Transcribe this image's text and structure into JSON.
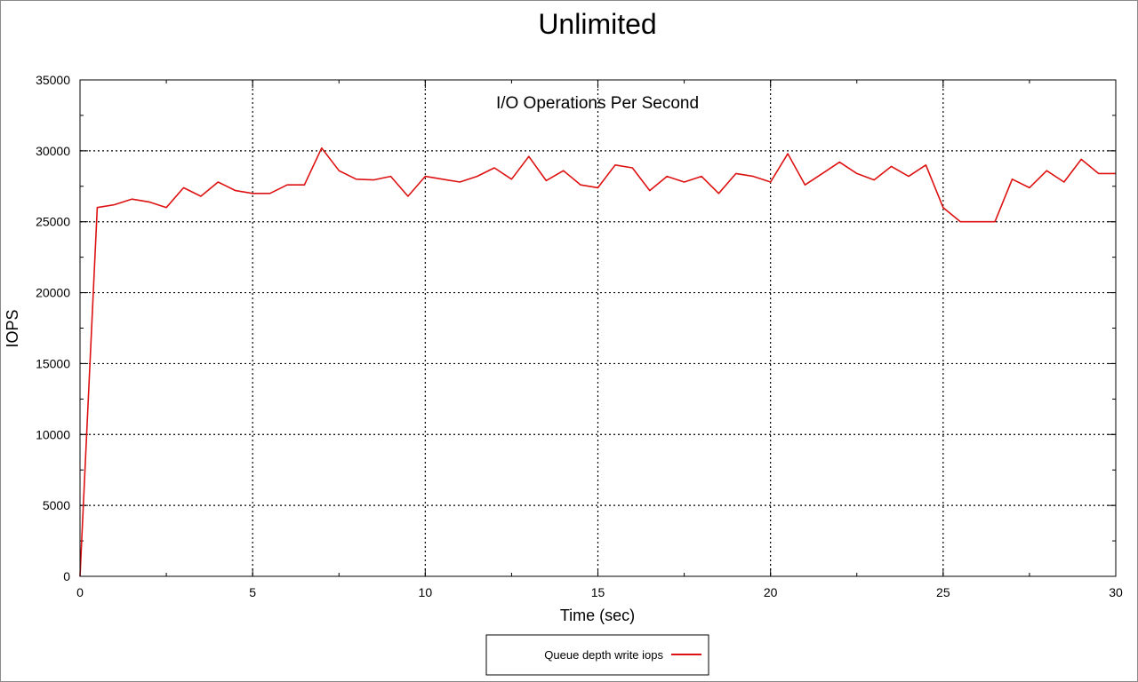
{
  "chart_data": {
    "type": "line",
    "title": "Unlimited",
    "subtitle": "I/O Operations Per Second",
    "xlabel": "Time (sec)",
    "ylabel": "IOPS",
    "xlim": [
      0,
      30
    ],
    "ylim": [
      0,
      35000
    ],
    "x_ticks": [
      0,
      5,
      10,
      15,
      20,
      25,
      30
    ],
    "y_ticks": [
      0,
      5000,
      10000,
      15000,
      20000,
      25000,
      30000,
      35000
    ],
    "grid": true,
    "legend_position": "bottom-center",
    "series": [
      {
        "name": "Queue depth write iops",
        "color": "#dd1111",
        "x": [
          0,
          0.5,
          1.0,
          1.5,
          2.0,
          2.5,
          3.0,
          3.5,
          4.0,
          4.5,
          5.0,
          5.5,
          6.0,
          6.5,
          7.0,
          7.5,
          8.0,
          8.5,
          9.0,
          9.5,
          10.0,
          10.5,
          11.0,
          11.5,
          12.0,
          12.5,
          13.0,
          13.5,
          14.0,
          14.5,
          15.0,
          15.5,
          16.0,
          16.5,
          17.0,
          17.5,
          18.0,
          18.5,
          19.0,
          19.5,
          20.0,
          20.5,
          21.0,
          21.5,
          22.0,
          22.5,
          23.0,
          23.5,
          24.0,
          24.5,
          25.0,
          25.5,
          26.0,
          26.5,
          27.0,
          27.5,
          28.0,
          28.5,
          29.0,
          29.5,
          30.0
        ],
        "values": [
          0,
          26000,
          26200,
          26600,
          26400,
          26000,
          27400,
          26800,
          27800,
          27200,
          27000,
          27000,
          27600,
          27600,
          30200,
          28600,
          28000,
          27950,
          28200,
          26800,
          28200,
          28000,
          27800,
          28200,
          28800,
          28000,
          29600,
          27900,
          28600,
          27600,
          27400,
          29000,
          28800,
          27200,
          28200,
          27800,
          28200,
          27000,
          28400,
          28200,
          27800,
          29800,
          27600,
          28400,
          29200,
          28400,
          27950,
          28900,
          28200,
          29000,
          26000,
          25000,
          25000,
          25000,
          28000,
          27400,
          28600,
          27800,
          29400,
          28400,
          28400
        ]
      }
    ]
  }
}
